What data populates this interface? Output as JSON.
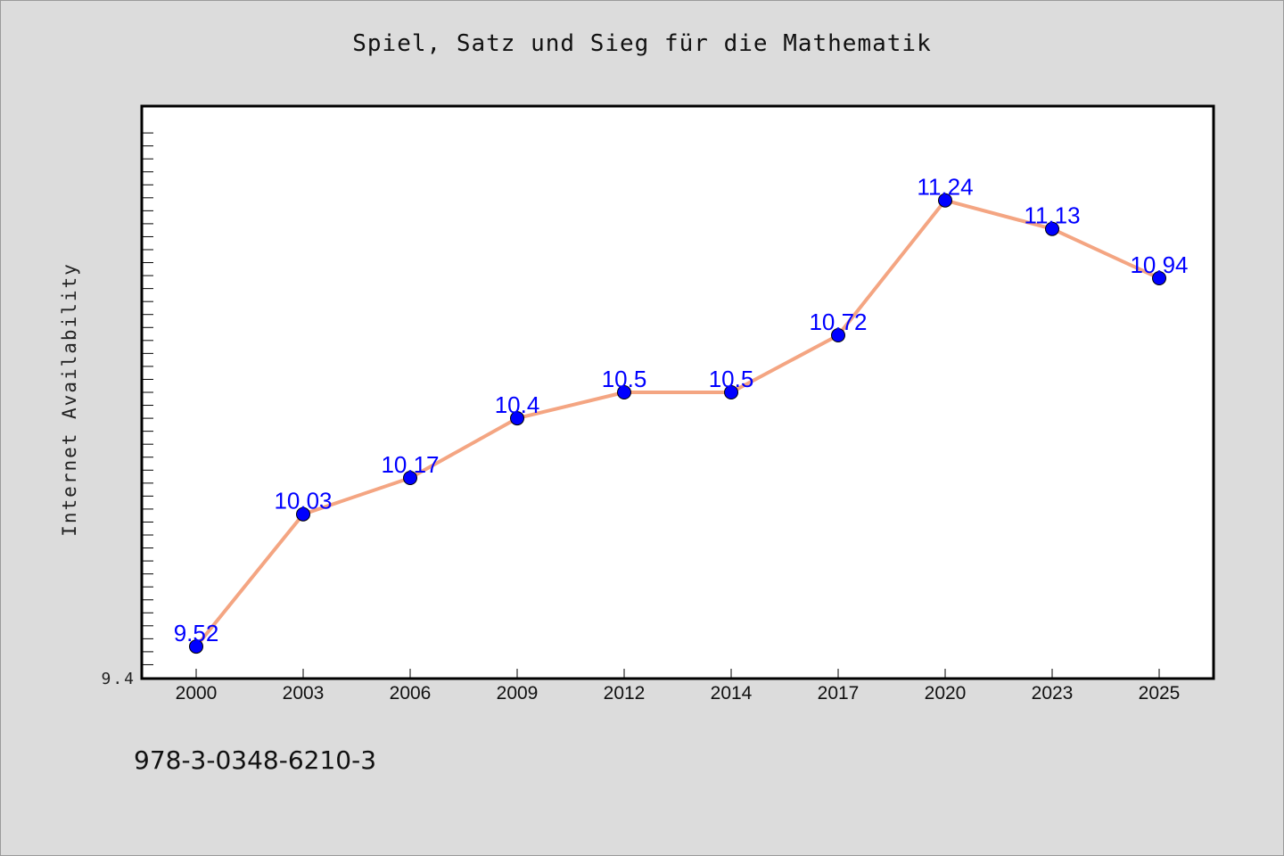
{
  "chart_data": {
    "type": "line",
    "title": "Spiel, Satz und Sieg für die Mathematik",
    "xlabel": "",
    "ylabel": "Internet Availability",
    "categories": [
      "2000",
      "2003",
      "2006",
      "2009",
      "2012",
      "2014",
      "2017",
      "2020",
      "2023",
      "2025"
    ],
    "series": [
      {
        "values": [
          9.52,
          10.03,
          10.17,
          10.4,
          10.5,
          10.5,
          10.72,
          11.24,
          11.13,
          10.94
        ]
      }
    ],
    "data_labels": [
      "9.52",
      "10.03",
      "10.17",
      "10.4",
      "10.5",
      "10.5",
      "10.72",
      "11.24",
      "11.13",
      "10.94"
    ],
    "ylim": [
      9.4,
      11.6
    ],
    "ytick_labels": [
      "9.4"
    ],
    "grid": false,
    "legend": "none",
    "colors": {
      "line": "#f4a582",
      "marker": "#0000ff",
      "label": "#0000ff",
      "plot_bg": "#ffffff",
      "page_bg": "#dcdcdc"
    }
  },
  "footer": {
    "isbn": "978-3-0348-6210-3"
  }
}
